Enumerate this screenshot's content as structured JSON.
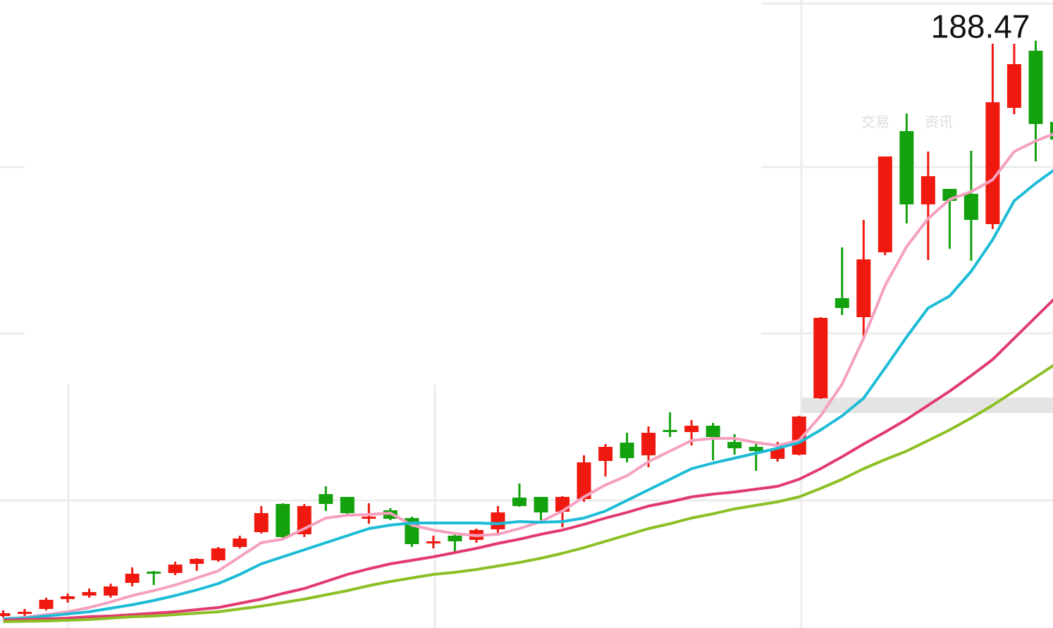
{
  "chart_data": {
    "type": "candlestick",
    "max_label_index": 48,
    "watermark": [
      "交易",
      "资讯"
    ],
    "ylim": [
      22,
      200
    ],
    "up_color": "#f0190f",
    "down_color": "#13a10e",
    "open": [
      25.2,
      26,
      27.2,
      30,
      31,
      31,
      34.6,
      37.8,
      37.4,
      40,
      41,
      44.8,
      49,
      57,
      48.4,
      59.8,
      59,
      52.8,
      55.2,
      53,
      45.8,
      48,
      46.8,
      49.8,
      58.8,
      59,
      54.8,
      58.4,
      69.2,
      74.4,
      70.8,
      78,
      77.4,
      79.2,
      74.6,
      73.2,
      69.8,
      71,
      87,
      115.4,
      110,
      128.4,
      162.8,
      142,
      146.4,
      145,
      136.4,
      169.4,
      185.6,
      165.4
    ],
    "high": [
      26.8,
      27.2,
      30.4,
      31.6,
      33,
      34.4,
      39,
      38,
      40.6,
      41.6,
      44.8,
      48,
      56.4,
      57.2,
      57,
      62,
      59,
      57.2,
      55.8,
      53.4,
      48,
      48.4,
      50,
      56.4,
      62.8,
      59,
      59.2,
      70.8,
      74,
      77.2,
      79,
      83,
      80.8,
      80,
      76.8,
      74.4,
      74.6,
      82,
      110,
      129.8,
      137.6,
      155.6,
      167.8,
      157,
      146.4,
      157.2,
      187.6,
      187.6,
      188.47,
      165.4
    ],
    "low": [
      24.8,
      24.8,
      26.8,
      29,
      30.4,
      30.4,
      33.6,
      34,
      36.8,
      38,
      40.6,
      44.4,
      48.6,
      47,
      47.6,
      55,
      54,
      51.4,
      52.4,
      44.8,
      44.4,
      43.4,
      46,
      48.8,
      56.2,
      52.4,
      50.4,
      57.6,
      64.8,
      68.8,
      67.4,
      76,
      73.6,
      69.4,
      71,
      66.4,
      69,
      70.8,
      86.8,
      110.6,
      104.4,
      127.6,
      136.6,
      126.2,
      129.4,
      126,
      135,
      167.6,
      154.2,
      160.4
    ],
    "close": [
      26,
      26.4,
      29.8,
      30.8,
      32,
      33.6,
      37.2,
      37.2,
      39.8,
      41.4,
      44.4,
      47.2,
      54.4,
      47.6,
      56.4,
      57,
      54.4,
      53.4,
      52.8,
      45.6,
      46.4,
      46.4,
      49.6,
      54.6,
      56.4,
      54.6,
      59,
      68.8,
      73.2,
      70,
      77.2,
      77.6,
      79.2,
      76,
      72.8,
      72,
      72.8,
      81.8,
      109.8,
      112.6,
      126.4,
      155.6,
      142,
      150,
      143,
      137.6,
      171,
      181.8,
      164.8,
      160.4
    ],
    "lines": [
      {
        "color": "#f5a0bf",
        "values": [
          24.4,
          24.8,
          25.6,
          26.4,
          27.6,
          29.2,
          31,
          32.4,
          34,
          36,
          38,
          42,
          46,
          47,
          50,
          53,
          53.8,
          54,
          54.4,
          51,
          49.6,
          48.6,
          48,
          48.4,
          50,
          52,
          55,
          59,
          62.4,
          65,
          69,
          72,
          75,
          75.6,
          75.6,
          74.4,
          73.6,
          75,
          82,
          91,
          104,
          119,
          130,
          138,
          143.4,
          145.6,
          149,
          157,
          160,
          162.4
        ]
      },
      {
        "color": "#1cbcd6",
        "values": [
          24.4,
          24.6,
          25.2,
          25.8,
          26.4,
          27.4,
          28.4,
          29.6,
          31,
          32.6,
          34.4,
          37,
          40,
          42,
          44,
          46,
          48,
          50,
          51,
          51.6,
          51.6,
          51.6,
          51.6,
          51.4,
          52,
          51.8,
          52,
          53,
          55,
          58,
          61,
          64,
          67,
          68.6,
          70,
          71.4,
          72.8,
          74.4,
          78,
          82,
          87,
          95.6,
          104.4,
          112.6,
          116,
          123,
          132,
          143,
          148,
          152.4
        ]
      },
      {
        "color": "#e23a6e",
        "values": [
          24,
          24.2,
          24.4,
          24.6,
          25,
          25.2,
          25.6,
          26,
          26.4,
          27,
          27.6,
          28.8,
          30,
          31.6,
          33,
          35,
          37,
          38.6,
          40,
          41,
          42,
          43.2,
          44.4,
          45.8,
          47,
          48.4,
          49.6,
          51.2,
          53,
          54.6,
          56.4,
          57.6,
          59,
          59.8,
          60.4,
          61.2,
          62,
          64,
          67,
          70.4,
          74,
          77.4,
          81,
          85,
          89,
          93.4,
          98,
          104,
          110,
          116
        ]
      },
      {
        "color": "#8cbf24",
        "values": [
          23.6,
          23.7,
          23.8,
          24,
          24.2,
          24.6,
          25,
          25.2,
          25.6,
          26,
          26.4,
          27.2,
          28,
          29,
          30,
          31.2,
          32.4,
          33.8,
          35,
          36,
          37,
          37.6,
          38.4,
          39.4,
          40.4,
          41.6,
          43,
          44.6,
          46.4,
          48.2,
          50,
          51.4,
          53,
          54.2,
          55.6,
          56.6,
          57.6,
          59,
          61.4,
          64,
          67,
          69.6,
          72,
          75,
          78,
          81.4,
          85,
          89,
          93,
          97
        ]
      }
    ]
  }
}
